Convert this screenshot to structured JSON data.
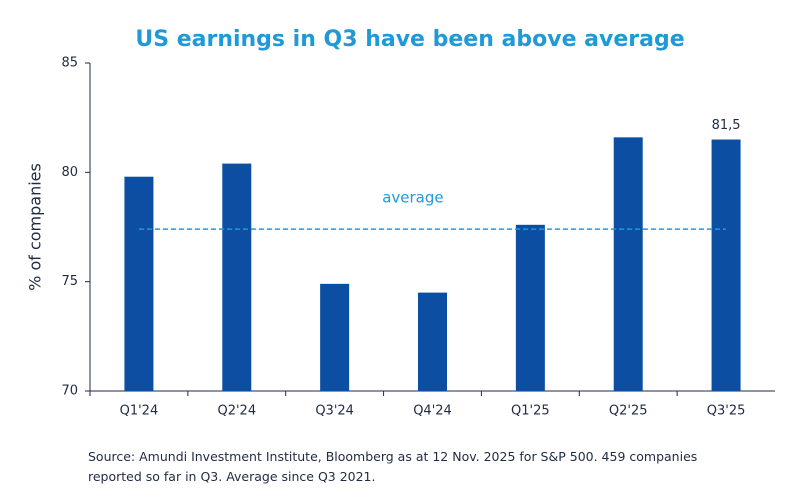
{
  "chart_data": {
    "type": "bar",
    "title": "US earnings in Q3 have been above average",
    "y_label": "% of companies",
    "categories": [
      "Q1'24",
      "Q2'24",
      "Q3'24",
      "Q4'24",
      "Q1'25",
      "Q2'25",
      "Q3'25"
    ],
    "values": [
      79.8,
      80.4,
      74.9,
      74.5,
      77.6,
      81.6,
      81.5
    ],
    "value_labels": [
      null,
      null,
      null,
      null,
      null,
      null,
      "81,5"
    ],
    "color": "#0b4ea2",
    "ylim": [
      70,
      85
    ],
    "yticks": [
      70,
      75,
      80,
      85
    ],
    "average": {
      "label": "average",
      "value": 77.4,
      "color": "#1f9ad6"
    },
    "source": [
      "Source: Amundi Investment Institute, Bloomberg as at 12 Nov. 2025 for S&P 500. 459 companies",
      "reported so far in Q3. Average since Q3 2021."
    ]
  }
}
